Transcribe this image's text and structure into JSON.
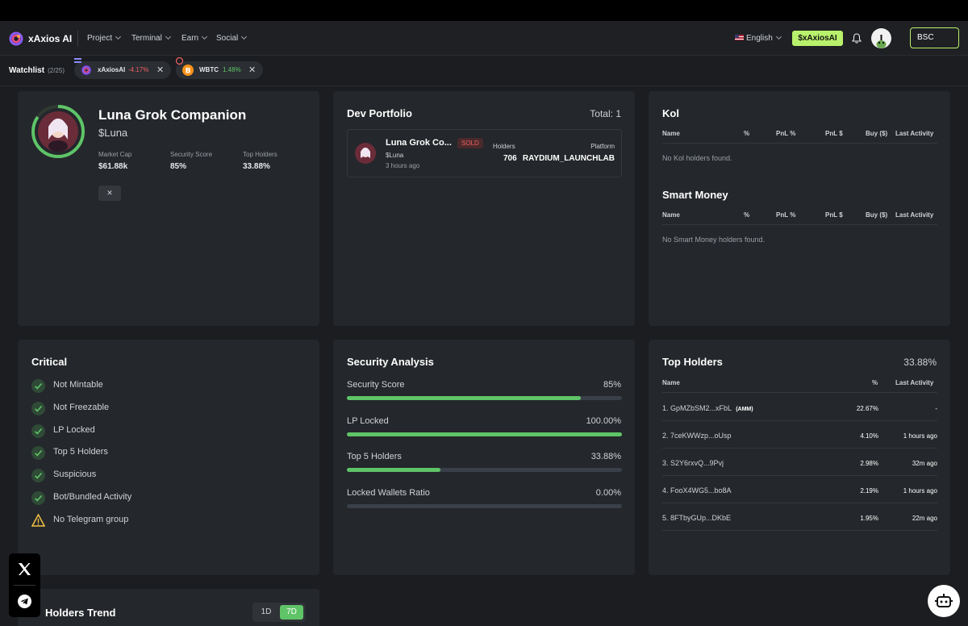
{
  "nav": {
    "brand": "xAxios AI",
    "menu": [
      "Project",
      "Terminal",
      "Earn",
      "Social"
    ],
    "language": "English",
    "token_button": "$xAxiosAI",
    "chain": "BSC"
  },
  "watchlist": {
    "label": "Watchlist",
    "count": "(2/25)",
    "items": [
      {
        "name": "xAxiosAI",
        "change": "-4.17%",
        "change_color": "#f06161"
      },
      {
        "name": "WBTC",
        "change": "1.48%",
        "change_color": "#5fc468"
      }
    ]
  },
  "token": {
    "name": "Luna Grok Companion",
    "symbol": "$Luna",
    "stats": [
      {
        "label": "Market Cap",
        "value": "$61.88k"
      },
      {
        "label": "Security Score",
        "value": "85%"
      },
      {
        "label": "Top Holders",
        "value": "33.88%"
      }
    ],
    "x_button": "✕"
  },
  "dev_portfolio": {
    "title": "Dev Portfolio",
    "total": "Total: 1",
    "item": {
      "name": "Luna Grok Co...",
      "badge": "SOLD",
      "symbol": "$Luna",
      "time": "3 hours ago",
      "holders_label": "Holders",
      "holders": "706",
      "platform_label": "Platform",
      "platform": "RAYDIUM_LAUNCHLAB"
    }
  },
  "kol": {
    "title": "Kol",
    "columns": [
      "Name",
      "%",
      "PnL %",
      "PnL $",
      "Buy ($)",
      "Last Activity"
    ],
    "empty": "No Kol holders found."
  },
  "smart_money": {
    "title": "Smart Money",
    "columns": [
      "Name",
      "%",
      "PnL %",
      "PnL $",
      "Buy ($)",
      "Last Activity"
    ],
    "empty": "No Smart Money holders found."
  },
  "critical": {
    "title": "Critical",
    "items": [
      {
        "label": "Not Mintable",
        "status": "ok"
      },
      {
        "label": "Not Freezable",
        "status": "ok"
      },
      {
        "label": "LP Locked",
        "status": "ok"
      },
      {
        "label": "Top 5 Holders",
        "status": "ok"
      },
      {
        "label": "Suspicious",
        "status": "ok"
      },
      {
        "label": "Bot/Bundled Activity",
        "status": "ok"
      },
      {
        "label": "No Telegram group",
        "status": "warning"
      }
    ]
  },
  "security": {
    "title": "Security Analysis",
    "rows": [
      {
        "label": "Security Score",
        "value": "85%",
        "fill": 0.85
      },
      {
        "label": "LP Locked",
        "value": "100.00%",
        "fill": 1.0
      },
      {
        "label": "Top 5 Holders",
        "value": "33.88%",
        "fill": 0.3388
      },
      {
        "label": "Locked Wallets Ratio",
        "value": "0.00%",
        "fill": 0.0
      }
    ]
  },
  "top_holders": {
    "title": "Top Holders",
    "total": "33.88%",
    "columns": [
      "Name",
      "%",
      "Last Activity"
    ],
    "rows": [
      {
        "name": "1. GpMZbSM2...xFbL",
        "tag": "(AMM)",
        "pct": "22.67%",
        "activity": "-"
      },
      {
        "name": "2. 7ceKWWzp...oUsp",
        "tag": "",
        "pct": "4.10%",
        "activity": "1 hours ago"
      },
      {
        "name": "3. S2Y6rxvQ...9Pvj",
        "tag": "",
        "pct": "2.98%",
        "activity": "32m ago"
      },
      {
        "name": "4. FooX4WG5...bo8A",
        "tag": "",
        "pct": "2.19%",
        "activity": "1 hours ago"
      },
      {
        "name": "5. 8FTbyGUp...DKbE",
        "tag": "",
        "pct": "1.95%",
        "activity": "22m ago"
      }
    ]
  },
  "holders_trend": {
    "title": "Holders Trend",
    "ranges": [
      "1D",
      "7D"
    ],
    "active": "7D"
  },
  "colors": {
    "accent": "#b8f16b",
    "green": "#5fc468",
    "red": "#f06161",
    "warn": "#f3c244"
  }
}
